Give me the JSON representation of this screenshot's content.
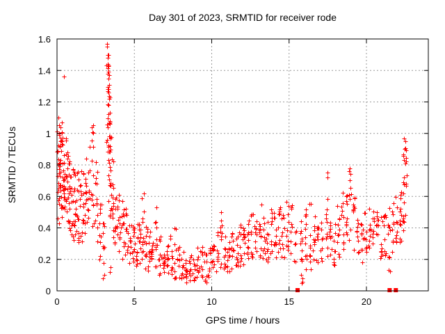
{
  "window": {
    "background": "#ffffff"
  },
  "chart_data": {
    "type": "scatter",
    "title": "Day 301 of 2023, SRMTID for receiver rode",
    "xlabel": "GPS time / hours",
    "ylabel": "SRMTID / TECUs",
    "xlim": [
      0,
      24
    ],
    "ylim": [
      0,
      1.6
    ],
    "xticks": [
      0,
      5,
      10,
      15,
      20
    ],
    "yticks": [
      0,
      0.2,
      0.4,
      0.6,
      0.8,
      1,
      1.2,
      1.4,
      1.6
    ],
    "grid": true,
    "legend": "none",
    "marker": "plus",
    "marker_color": "#ff0000",
    "grid_color": "#999999",
    "axis_color": "#000000",
    "seed": 987654321,
    "comment_clusters": "dense vertical point columns: [x_center_hours, x_halfwidth, count, y_min_TECU, y_max_TECU]",
    "clusters": [
      [
        0.08,
        0.08,
        22,
        0.4,
        1.1
      ],
      [
        0.22,
        0.08,
        20,
        0.5,
        1.05
      ],
      [
        0.38,
        0.08,
        18,
        0.45,
        1.02
      ],
      [
        0.52,
        0.08,
        18,
        0.52,
        1.0
      ],
      [
        0.68,
        0.08,
        16,
        0.4,
        0.95
      ],
      [
        0.85,
        0.1,
        16,
        0.35,
        0.88
      ],
      [
        1.05,
        0.1,
        14,
        0.32,
        0.8
      ],
      [
        1.25,
        0.1,
        14,
        0.33,
        0.76
      ],
      [
        1.45,
        0.1,
        14,
        0.3,
        0.72
      ],
      [
        1.65,
        0.08,
        12,
        0.3,
        0.78
      ],
      [
        1.85,
        0.08,
        12,
        0.35,
        0.9
      ],
      [
        2.05,
        0.08,
        10,
        0.38,
        0.92
      ],
      [
        2.3,
        0.08,
        14,
        0.4,
        1.05
      ],
      [
        2.55,
        0.08,
        12,
        0.3,
        0.85
      ],
      [
        2.8,
        0.08,
        10,
        0.18,
        0.6
      ],
      [
        3.0,
        0.06,
        8,
        0.1,
        0.45
      ],
      [
        3.25,
        0.07,
        16,
        0.6,
        1.45
      ],
      [
        3.35,
        0.06,
        18,
        0.55,
        1.3
      ],
      [
        3.45,
        0.06,
        14,
        0.4,
        1.1
      ],
      [
        3.6,
        0.07,
        12,
        0.3,
        0.85
      ],
      [
        3.8,
        0.08,
        12,
        0.25,
        0.7
      ],
      [
        4.0,
        0.1,
        12,
        0.22,
        0.62
      ],
      [
        4.25,
        0.1,
        12,
        0.2,
        0.58
      ],
      [
        4.5,
        0.1,
        12,
        0.2,
        0.55
      ],
      [
        4.75,
        0.1,
        10,
        0.17,
        0.5
      ],
      [
        4.95,
        0.08,
        10,
        0.18,
        0.46
      ],
      [
        5.15,
        0.08,
        10,
        0.15,
        0.48
      ],
      [
        5.35,
        0.08,
        10,
        0.15,
        0.44
      ],
      [
        5.55,
        0.08,
        10,
        0.2,
        0.6
      ],
      [
        5.75,
        0.08,
        10,
        0.13,
        0.42
      ],
      [
        5.95,
        0.08,
        10,
        0.12,
        0.4
      ],
      [
        6.15,
        0.08,
        10,
        0.12,
        0.38
      ],
      [
        6.4,
        0.08,
        10,
        0.14,
        0.52
      ],
      [
        6.65,
        0.08,
        10,
        0.1,
        0.35
      ],
      [
        6.9,
        0.08,
        10,
        0.1,
        0.33
      ],
      [
        7.15,
        0.08,
        10,
        0.08,
        0.31
      ],
      [
        7.4,
        0.08,
        9,
        0.1,
        0.36
      ],
      [
        7.62,
        0.08,
        9,
        0.08,
        0.42
      ],
      [
        7.85,
        0.08,
        9,
        0.06,
        0.28
      ],
      [
        8.1,
        0.08,
        10,
        0.05,
        0.26
      ],
      [
        8.35,
        0.08,
        10,
        0.05,
        0.22
      ],
      [
        8.6,
        0.08,
        9,
        0.06,
        0.25
      ],
      [
        8.85,
        0.08,
        9,
        0.05,
        0.24
      ],
      [
        9.1,
        0.08,
        9,
        0.06,
        0.28
      ],
      [
        9.35,
        0.08,
        9,
        0.08,
        0.3
      ],
      [
        9.6,
        0.08,
        9,
        0.05,
        0.26
      ],
      [
        9.85,
        0.08,
        9,
        0.08,
        0.3
      ],
      [
        10.1,
        0.08,
        10,
        0.1,
        0.32
      ],
      [
        10.35,
        0.08,
        9,
        0.12,
        0.38
      ],
      [
        10.6,
        0.07,
        9,
        0.14,
        0.47
      ],
      [
        10.85,
        0.08,
        9,
        0.1,
        0.35
      ],
      [
        11.1,
        0.08,
        10,
        0.12,
        0.36
      ],
      [
        11.35,
        0.08,
        10,
        0.14,
        0.38
      ],
      [
        11.6,
        0.08,
        10,
        0.12,
        0.4
      ],
      [
        11.85,
        0.08,
        10,
        0.15,
        0.42
      ],
      [
        12.1,
        0.08,
        10,
        0.15,
        0.42
      ],
      [
        12.35,
        0.08,
        10,
        0.18,
        0.45
      ],
      [
        12.6,
        0.07,
        9,
        0.2,
        0.5
      ],
      [
        12.85,
        0.08,
        10,
        0.18,
        0.45
      ],
      [
        13.1,
        0.08,
        10,
        0.2,
        0.53
      ],
      [
        13.35,
        0.08,
        10,
        0.2,
        0.5
      ],
      [
        13.6,
        0.08,
        10,
        0.18,
        0.46
      ],
      [
        13.85,
        0.08,
        10,
        0.22,
        0.52
      ],
      [
        14.1,
        0.08,
        10,
        0.2,
        0.5
      ],
      [
        14.35,
        0.08,
        10,
        0.22,
        0.55
      ],
      [
        14.6,
        0.08,
        10,
        0.2,
        0.52
      ],
      [
        14.9,
        0.08,
        10,
        0.25,
        0.6
      ],
      [
        15.15,
        0.07,
        8,
        0.2,
        0.55
      ],
      [
        15.4,
        0.06,
        6,
        0.15,
        0.45
      ],
      [
        15.8,
        0.07,
        10,
        0.03,
        0.5
      ],
      [
        16.1,
        0.07,
        12,
        0.05,
        0.55
      ],
      [
        16.35,
        0.07,
        10,
        0.1,
        0.58
      ],
      [
        16.6,
        0.08,
        9,
        0.12,
        0.5
      ],
      [
        16.85,
        0.08,
        9,
        0.12,
        0.42
      ],
      [
        17.1,
        0.08,
        9,
        0.15,
        0.45
      ],
      [
        17.45,
        0.07,
        11,
        0.2,
        0.73
      ],
      [
        17.7,
        0.08,
        9,
        0.18,
        0.5
      ],
      [
        17.95,
        0.08,
        9,
        0.15,
        0.45
      ],
      [
        18.2,
        0.08,
        10,
        0.2,
        0.55
      ],
      [
        18.45,
        0.08,
        10,
        0.25,
        0.65
      ],
      [
        18.7,
        0.07,
        10,
        0.3,
        0.7
      ],
      [
        18.95,
        0.07,
        9,
        0.3,
        0.78
      ],
      [
        19.2,
        0.08,
        10,
        0.25,
        0.6
      ],
      [
        19.45,
        0.08,
        9,
        0.2,
        0.5
      ],
      [
        19.7,
        0.08,
        9,
        0.18,
        0.45
      ],
      [
        19.95,
        0.08,
        9,
        0.2,
        0.5
      ],
      [
        20.2,
        0.08,
        9,
        0.25,
        0.55
      ],
      [
        20.45,
        0.07,
        9,
        0.28,
        0.62
      ],
      [
        20.7,
        0.08,
        9,
        0.25,
        0.55
      ],
      [
        20.95,
        0.08,
        9,
        0.2,
        0.5
      ],
      [
        21.2,
        0.08,
        10,
        0.15,
        0.5
      ],
      [
        21.45,
        0.08,
        10,
        0.12,
        0.55
      ],
      [
        21.7,
        0.07,
        9,
        0.2,
        0.58
      ],
      [
        21.95,
        0.07,
        9,
        0.25,
        0.6
      ],
      [
        22.2,
        0.06,
        12,
        0.3,
        0.65
      ],
      [
        22.4,
        0.05,
        14,
        0.35,
        0.88
      ],
      [
        22.55,
        0.05,
        10,
        0.45,
        0.95
      ]
    ],
    "comment_outliers": "individually visible extreme points [x_hours, y_TECU]",
    "outliers": [
      [
        0.45,
        1.36
      ],
      [
        0.1,
        1.1
      ],
      [
        0.3,
        1.07
      ],
      [
        3.22,
        1.57
      ],
      [
        3.24,
        1.55
      ],
      [
        3.28,
        1.5
      ],
      [
        3.31,
        1.5
      ],
      [
        3.26,
        1.48
      ],
      [
        3.3,
        1.44
      ],
      [
        3.34,
        1.43
      ],
      [
        3.29,
        1.38
      ],
      [
        3.35,
        1.37
      ],
      [
        3.32,
        1.35
      ],
      [
        3.36,
        1.31
      ],
      [
        3.3,
        1.28
      ],
      [
        3.38,
        1.22
      ],
      [
        3.33,
        1.18
      ],
      [
        3.4,
        1.13
      ],
      [
        3.42,
        1.08
      ],
      [
        2.32,
        1.05
      ],
      [
        15.78,
        0.44
      ],
      [
        15.8,
        0.32
      ],
      [
        15.82,
        0.2
      ],
      [
        15.79,
        0.1
      ],
      [
        15.83,
        0.05
      ],
      [
        17.48,
        0.75
      ],
      [
        18.92,
        0.78
      ],
      [
        22.42,
        0.97
      ],
      [
        22.5,
        0.95
      ],
      [
        22.46,
        0.9
      ],
      [
        5.62,
        0.62
      ],
      [
        6.42,
        0.53
      ],
      [
        10.62,
        0.5
      ],
      [
        13.2,
        0.55
      ],
      [
        3.45,
        0.15
      ],
      [
        3.4,
        0.12
      ],
      [
        2.95,
        0.08
      ],
      [
        3.05,
        0.1
      ]
    ],
    "comment_zero_markers": "filled squares sitting on the x-axis (y = 0), x in hours",
    "zero_markers": [
      15.55,
      21.5,
      21.9
    ]
  }
}
